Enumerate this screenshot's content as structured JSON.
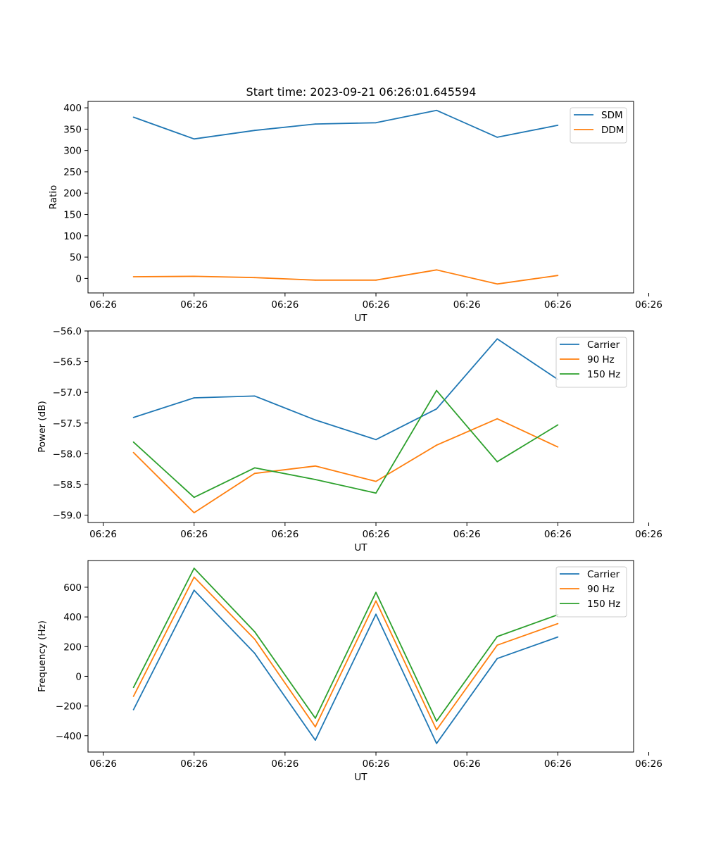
{
  "figure_title": "Start time: 2023-09-21 06:26:01.645594",
  "colors": {
    "c0": "#1f77b4",
    "c1": "#ff7f0e",
    "c2": "#2ca02c"
  },
  "chart_data": [
    {
      "type": "line",
      "title": "Start time: 2023-09-21 06:26:01.645594",
      "xlabel": "UT",
      "ylabel": "Ratio",
      "x": [
        1,
        2,
        3,
        4,
        5,
        6,
        7,
        8
      ],
      "xlim": [
        0.25,
        9.25
      ],
      "x_ticks": [
        0.5,
        2,
        3.5,
        5,
        6.5,
        8,
        9.5
      ],
      "x_tick_labels": [
        "06:26",
        "06:26",
        "06:26",
        "06:26",
        "06:26",
        "06:26",
        "06:26"
      ],
      "ylim": [
        -34,
        415
      ],
      "y_ticks": [
        0,
        50,
        100,
        150,
        200,
        250,
        300,
        350,
        400
      ],
      "y_tick_labels": [
        "0",
        "50",
        "100",
        "150",
        "200",
        "250",
        "300",
        "350",
        "400"
      ],
      "legend": "top-right",
      "series": [
        {
          "name": "SDM",
          "color": "#1f77b4",
          "values": [
            378,
            327,
            347,
            362,
            365,
            394,
            331,
            359
          ]
        },
        {
          "name": "DDM",
          "color": "#ff7f0e",
          "values": [
            4,
            5,
            2,
            -4,
            -4,
            20,
            -13,
            7
          ]
        }
      ]
    },
    {
      "type": "line",
      "title": "",
      "xlabel": "UT",
      "ylabel": "Power (dB)",
      "x": [
        1,
        2,
        3,
        4,
        5,
        6,
        7,
        8
      ],
      "xlim": [
        0.25,
        9.25
      ],
      "x_ticks": [
        0.5,
        2,
        3.5,
        5,
        6.5,
        8,
        9.5
      ],
      "x_tick_labels": [
        "06:26",
        "06:26",
        "06:26",
        "06:26",
        "06:26",
        "06:26",
        "06:26"
      ],
      "ylim": [
        -59.12,
        -56.0
      ],
      "y_ticks": [
        -59.0,
        -58.5,
        -58.0,
        -57.5,
        -57.0,
        -56.5,
        -56.0
      ],
      "y_tick_labels": [
        "−59.0",
        "−58.5",
        "−58.0",
        "−57.5",
        "−57.0",
        "−56.5",
        "−56.0"
      ],
      "legend": "top-right",
      "series": [
        {
          "name": "Carrier",
          "color": "#1f77b4",
          "values": [
            -57.41,
            -57.09,
            -57.06,
            -57.45,
            -57.77,
            -57.27,
            -56.13,
            -56.79
          ]
        },
        {
          "name": "90 Hz",
          "color": "#ff7f0e",
          "values": [
            -57.98,
            -58.96,
            -58.32,
            -58.2,
            -58.45,
            -57.86,
            -57.43,
            -57.89
          ]
        },
        {
          "name": "150 Hz",
          "color": "#2ca02c",
          "values": [
            -57.81,
            -58.71,
            -58.23,
            -58.42,
            -58.64,
            -56.97,
            -58.13,
            -57.53
          ]
        }
      ]
    },
    {
      "type": "line",
      "title": "",
      "xlabel": "UT",
      "ylabel": "Frequency (Hz)",
      "x": [
        1,
        2,
        3,
        4,
        5,
        6,
        7,
        8
      ],
      "xlim": [
        0.25,
        9.25
      ],
      "x_ticks": [
        0.5,
        2,
        3.5,
        5,
        6.5,
        8,
        9.5
      ],
      "x_tick_labels": [
        "06:26",
        "06:26",
        "06:26",
        "06:26",
        "06:26",
        "06:26",
        "06:26"
      ],
      "ylim": [
        -510,
        780
      ],
      "y_ticks": [
        -400,
        -200,
        0,
        200,
        400,
        600
      ],
      "y_tick_labels": [
        "−400",
        "−200",
        "0",
        "200",
        "400",
        "600"
      ],
      "legend": "top-right",
      "series": [
        {
          "name": "Carrier",
          "color": "#1f77b4",
          "values": [
            -225,
            580,
            155,
            -430,
            418,
            -452,
            120,
            265
          ]
        },
        {
          "name": "90 Hz",
          "color": "#ff7f0e",
          "values": [
            -135,
            668,
            250,
            -340,
            508,
            -360,
            210,
            355
          ]
        },
        {
          "name": "150 Hz",
          "color": "#2ca02c",
          "values": [
            -75,
            728,
            300,
            -282,
            565,
            -302,
            268,
            415
          ]
        }
      ]
    }
  ]
}
